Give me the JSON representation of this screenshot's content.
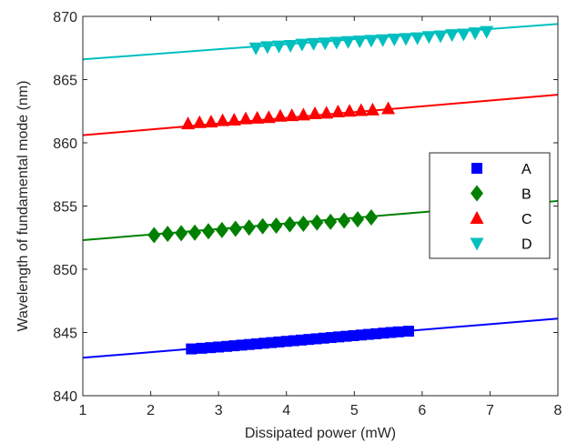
{
  "chart_data": {
    "type": "scatter",
    "xlabel": "Dissipated power (mW)",
    "ylabel": "Wavelength of fundamental mode (nm)",
    "xlim": [
      1,
      8
    ],
    "ylim": [
      840,
      870
    ],
    "xticks": [
      "1",
      "2",
      "3",
      "4",
      "5",
      "6",
      "7",
      "8"
    ],
    "yticks": [
      "840",
      "845",
      "850",
      "855",
      "860",
      "865",
      "870"
    ],
    "grid": false,
    "legend_position": "right",
    "series": [
      {
        "name": "A",
        "marker": "square",
        "color": "#0000ff",
        "x": [
          2.6,
          2.75,
          2.88,
          3.0,
          3.12,
          3.23,
          3.34,
          3.45,
          3.56,
          3.67,
          3.78,
          3.89,
          4.0,
          4.11,
          4.22,
          4.33,
          4.44,
          4.55,
          4.66,
          4.77,
          4.88,
          4.99,
          5.1,
          5.21,
          5.32,
          5.43,
          5.54,
          5.65,
          5.8
        ],
        "y": [
          843.7,
          843.75,
          843.8,
          843.85,
          843.9,
          843.95,
          844.0,
          844.05,
          844.1,
          844.15,
          844.2,
          844.25,
          844.3,
          844.35,
          844.4,
          844.45,
          844.5,
          844.55,
          844.6,
          844.65,
          844.7,
          844.75,
          844.8,
          844.85,
          844.9,
          844.95,
          845.0,
          845.05,
          845.1
        ],
        "fit": {
          "x": [
            1,
            8
          ],
          "y": [
            843.0,
            846.1
          ]
        }
      },
      {
        "name": "B",
        "marker": "diamond",
        "color": "#008000",
        "x": [
          2.05,
          2.25,
          2.45,
          2.65,
          2.85,
          3.05,
          3.25,
          3.45,
          3.65,
          3.85,
          4.05,
          4.25,
          4.45,
          4.65,
          4.85,
          5.05,
          5.25
        ],
        "y": [
          852.7,
          852.8,
          852.85,
          852.9,
          853.0,
          853.1,
          853.2,
          853.3,
          853.4,
          853.45,
          853.55,
          853.6,
          853.7,
          853.75,
          853.85,
          853.95,
          854.1
        ],
        "fit": {
          "x": [
            1,
            8
          ],
          "y": [
            852.3,
            855.4
          ]
        }
      },
      {
        "name": "C",
        "marker": "triangle-up",
        "color": "#ff0000",
        "x": [
          2.55,
          2.72,
          2.89,
          3.06,
          3.23,
          3.4,
          3.57,
          3.74,
          3.91,
          4.08,
          4.25,
          4.42,
          4.59,
          4.76,
          4.93,
          5.1,
          5.27,
          5.5
        ],
        "y": [
          861.5,
          861.6,
          861.65,
          861.75,
          861.8,
          861.9,
          861.95,
          862.0,
          862.1,
          862.15,
          862.2,
          862.3,
          862.35,
          862.45,
          862.5,
          862.55,
          862.6,
          862.7
        ],
        "fit": {
          "x": [
            1,
            8
          ],
          "y": [
            860.6,
            863.8
          ]
        }
      },
      {
        "name": "D",
        "marker": "triangle-down",
        "color": "#00bfbf",
        "x": [
          3.55,
          3.72,
          3.89,
          4.06,
          4.23,
          4.4,
          4.57,
          4.74,
          4.91,
          5.08,
          5.25,
          5.42,
          5.59,
          5.76,
          5.93,
          6.1,
          6.27,
          6.44,
          6.61,
          6.78,
          6.95
        ],
        "y": [
          867.5,
          867.6,
          867.65,
          867.7,
          867.8,
          867.85,
          867.9,
          867.95,
          868.0,
          868.05,
          868.1,
          868.15,
          868.2,
          868.25,
          868.3,
          868.4,
          868.45,
          868.55,
          868.6,
          868.7,
          868.8
        ],
        "fit": {
          "x": [
            1,
            8
          ],
          "y": [
            866.6,
            869.4
          ]
        }
      }
    ]
  }
}
